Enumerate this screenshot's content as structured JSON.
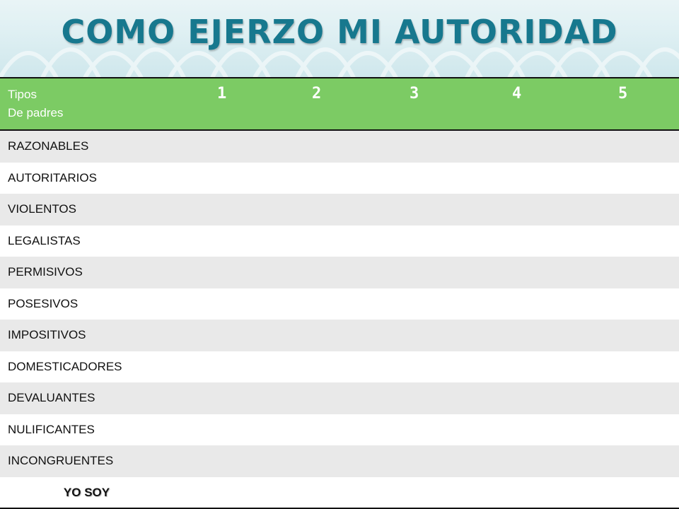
{
  "title": "COMO EJERZO MI AUTORIDAD",
  "header": {
    "label_line1": "Tipos",
    "label_line2": "De padres",
    "columns": [
      "1",
      "2",
      "3",
      "4",
      "5"
    ]
  },
  "rows": [
    "RAZONABLES",
    "AUTORITARIOS",
    "VIOLENTOS",
    "LEGALISTAS",
    "PERMISIVOS",
    "POSESIVOS",
    "IMPOSITIVOS",
    "DOMESTICADORES",
    "DEVALUANTES",
    "NULIFICANTES",
    "INCONGRUENTES"
  ],
  "footer_row": "YO SOY",
  "colors": {
    "header_green": "#7ccb64",
    "title_teal": "#17788e",
    "row_alt": "#e9e9e9"
  }
}
